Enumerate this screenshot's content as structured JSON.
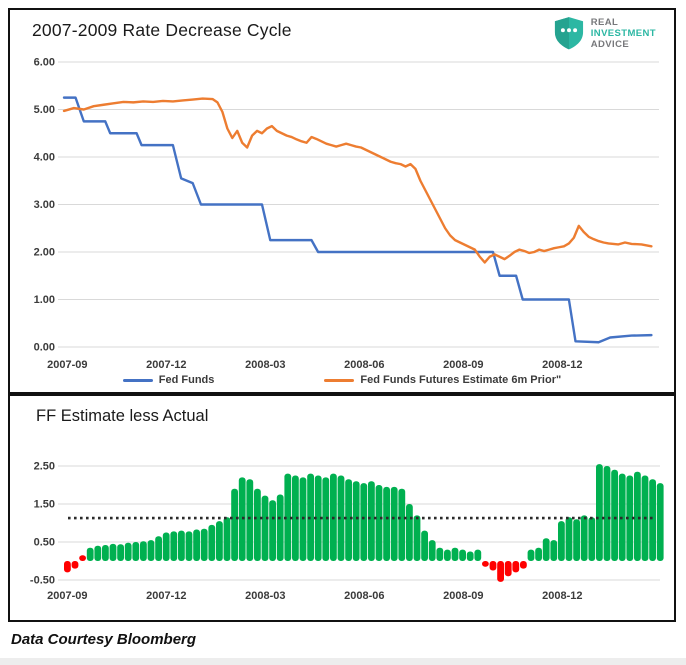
{
  "header": {
    "logo": {
      "line1": "REAL",
      "line2": "INVESTMENT",
      "line3": "ADVICE"
    }
  },
  "footer": {
    "credit": "Data Courtesy Bloomberg"
  },
  "colors": {
    "fed_funds": "#4472C4",
    "futures": "#ED7D31",
    "positive": "#00B050",
    "negative": "#FF0000",
    "gridline": "#D9D9D9",
    "axis_text": "#3B3B3B",
    "dotted_line": "#2B2B2B",
    "logo_teal": "#2CB7A3",
    "logo_teal_dark": "#25A390",
    "logo_gray": "#77787B",
    "border": "#111111"
  },
  "chart_data": [
    {
      "type": "line",
      "title": "2007-2009 Rate Decrease Cycle",
      "xlabel": "",
      "ylabel": "",
      "x_unit": "months since 2007-09",
      "ylim": [
        0,
        6
      ],
      "grid": true,
      "legend_position": "bottom",
      "y_ticks": [
        6,
        5,
        4,
        3,
        2,
        1,
        0
      ],
      "x_ticks": [
        {
          "t": 0.1,
          "label": "2007-09"
        },
        {
          "t": 3.1,
          "label": "2007-12"
        },
        {
          "t": 6.1,
          "label": "2008-03"
        },
        {
          "t": 9.1,
          "label": "2008-06"
        },
        {
          "t": 12.1,
          "label": "2008-09"
        },
        {
          "t": 15.1,
          "label": "2008-12"
        }
      ],
      "legend": [
        {
          "name": "Fed Funds",
          "color_key": "fed_funds"
        },
        {
          "name": "Fed Funds Futures Estimate 6m Prior\"",
          "color_key": "futures"
        }
      ],
      "series": [
        {
          "name": "Fed Funds",
          "color_key": "fed_funds",
          "points": [
            [
              0,
              5.25
            ],
            [
              0.35,
              5.25
            ],
            [
              0.6,
              4.75
            ],
            [
              1.25,
              4.75
            ],
            [
              1.4,
              4.5
            ],
            [
              2.2,
              4.5
            ],
            [
              2.35,
              4.25
            ],
            [
              3.3,
              4.25
            ],
            [
              3.55,
              3.55
            ],
            [
              3.9,
              3.45
            ],
            [
              4.15,
              3.0
            ],
            [
              6.0,
              3.0
            ],
            [
              6.25,
              2.25
            ],
            [
              7.5,
              2.25
            ],
            [
              7.7,
              2.0
            ],
            [
              13.0,
              2.0
            ],
            [
              13.2,
              1.5
            ],
            [
              13.7,
              1.5
            ],
            [
              13.9,
              1.0
            ],
            [
              15.3,
              1.0
            ],
            [
              15.5,
              0.12
            ],
            [
              16.2,
              0.1
            ],
            [
              16.55,
              0.2
            ],
            [
              17.2,
              0.24
            ],
            [
              17.8,
              0.25
            ]
          ]
        },
        {
          "name": "Fed Funds Futures Estimate 6m Prior\"",
          "color_key": "futures",
          "points": [
            [
              0,
              4.97
            ],
            [
              0.3,
              5.03
            ],
            [
              0.6,
              5.0
            ],
            [
              0.9,
              5.07
            ],
            [
              1.2,
              5.1
            ],
            [
              1.5,
              5.13
            ],
            [
              1.8,
              5.16
            ],
            [
              2.1,
              5.15
            ],
            [
              2.4,
              5.17
            ],
            [
              2.7,
              5.16
            ],
            [
              3.0,
              5.18
            ],
            [
              3.3,
              5.17
            ],
            [
              3.6,
              5.19
            ],
            [
              3.9,
              5.21
            ],
            [
              4.2,
              5.23
            ],
            [
              4.5,
              5.22
            ],
            [
              4.65,
              5.15
            ],
            [
              4.8,
              4.95
            ],
            [
              4.95,
              4.6
            ],
            [
              5.1,
              4.4
            ],
            [
              5.25,
              4.55
            ],
            [
              5.4,
              4.3
            ],
            [
              5.55,
              4.2
            ],
            [
              5.7,
              4.45
            ],
            [
              5.85,
              4.55
            ],
            [
              6.0,
              4.5
            ],
            [
              6.15,
              4.6
            ],
            [
              6.3,
              4.65
            ],
            [
              6.45,
              4.55
            ],
            [
              6.6,
              4.5
            ],
            [
              6.75,
              4.45
            ],
            [
              6.9,
              4.42
            ],
            [
              7.05,
              4.37
            ],
            [
              7.2,
              4.33
            ],
            [
              7.35,
              4.3
            ],
            [
              7.5,
              4.42
            ],
            [
              7.65,
              4.38
            ],
            [
              7.8,
              4.33
            ],
            [
              7.95,
              4.28
            ],
            [
              8.1,
              4.25
            ],
            [
              8.25,
              4.22
            ],
            [
              8.4,
              4.25
            ],
            [
              8.55,
              4.28
            ],
            [
              8.7,
              4.25
            ],
            [
              8.85,
              4.22
            ],
            [
              9.0,
              4.2
            ],
            [
              9.15,
              4.15
            ],
            [
              9.3,
              4.1
            ],
            [
              9.45,
              4.05
            ],
            [
              9.6,
              4.0
            ],
            [
              9.75,
              3.95
            ],
            [
              9.9,
              3.9
            ],
            [
              10.05,
              3.87
            ],
            [
              10.2,
              3.85
            ],
            [
              10.35,
              3.8
            ],
            [
              10.5,
              3.85
            ],
            [
              10.65,
              3.75
            ],
            [
              10.8,
              3.5
            ],
            [
              10.95,
              3.3
            ],
            [
              11.1,
              3.1
            ],
            [
              11.25,
              2.9
            ],
            [
              11.4,
              2.7
            ],
            [
              11.55,
              2.5
            ],
            [
              11.7,
              2.35
            ],
            [
              11.85,
              2.25
            ],
            [
              12.0,
              2.2
            ],
            [
              12.15,
              2.15
            ],
            [
              12.3,
              2.1
            ],
            [
              12.45,
              2.05
            ],
            [
              12.6,
              1.9
            ],
            [
              12.75,
              1.78
            ],
            [
              12.9,
              1.9
            ],
            [
              13.05,
              1.95
            ],
            [
              13.2,
              1.9
            ],
            [
              13.35,
              1.85
            ],
            [
              13.5,
              1.92
            ],
            [
              13.65,
              2.0
            ],
            [
              13.8,
              2.05
            ],
            [
              13.95,
              2.02
            ],
            [
              14.1,
              1.98
            ],
            [
              14.25,
              2.0
            ],
            [
              14.4,
              2.05
            ],
            [
              14.55,
              2.02
            ],
            [
              14.7,
              2.05
            ],
            [
              14.85,
              2.08
            ],
            [
              15.0,
              2.1
            ],
            [
              15.15,
              2.12
            ],
            [
              15.3,
              2.18
            ],
            [
              15.45,
              2.3
            ],
            [
              15.6,
              2.55
            ],
            [
              15.75,
              2.42
            ],
            [
              15.9,
              2.32
            ],
            [
              16.05,
              2.27
            ],
            [
              16.2,
              2.23
            ],
            [
              16.35,
              2.2
            ],
            [
              16.5,
              2.18
            ],
            [
              16.65,
              2.17
            ],
            [
              16.8,
              2.16
            ],
            [
              17.0,
              2.2
            ],
            [
              17.2,
              2.17
            ],
            [
              17.5,
              2.16
            ],
            [
              17.8,
              2.12
            ]
          ]
        }
      ]
    },
    {
      "type": "bar",
      "title": "FF Estimate less Actual",
      "xlabel": "",
      "ylabel": "",
      "x_unit": "weeks since 2007-09",
      "ylim": [
        -0.75,
        2.75
      ],
      "grid": true,
      "reference_line": 1.13,
      "y_ticks": [
        2.5,
        1.5,
        0.5,
        -0.5
      ],
      "x_ticks": [
        {
          "t": 0.1,
          "label": "2007-09"
        },
        {
          "t": 3.1,
          "label": "2007-12"
        },
        {
          "t": 6.1,
          "label": "2008-03"
        },
        {
          "t": 9.1,
          "label": "2008-06"
        },
        {
          "t": 12.1,
          "label": "2008-09"
        },
        {
          "t": 15.1,
          "label": "2008-12"
        }
      ],
      "values": [
        -0.3,
        -0.2,
        0.15,
        0.35,
        0.4,
        0.42,
        0.45,
        0.44,
        0.48,
        0.5,
        0.52,
        0.55,
        0.65,
        0.75,
        0.78,
        0.8,
        0.78,
        0.83,
        0.85,
        0.95,
        1.05,
        1.15,
        1.9,
        2.2,
        2.15,
        1.9,
        1.72,
        1.6,
        1.75,
        2.3,
        2.25,
        2.2,
        2.3,
        2.25,
        2.2,
        2.3,
        2.25,
        2.15,
        2.1,
        2.05,
        2.1,
        2.0,
        1.95,
        1.95,
        1.9,
        1.5,
        1.2,
        0.8,
        0.55,
        0.35,
        0.3,
        0.35,
        0.3,
        0.25,
        0.3,
        -0.15,
        -0.25,
        -0.55,
        -0.4,
        -0.3,
        -0.2,
        0.3,
        0.35,
        0.6,
        0.55,
        1.05,
        1.15,
        1.1,
        1.2,
        1.15,
        2.55,
        2.5,
        2.4,
        2.3,
        2.25,
        2.35,
        2.25,
        2.15,
        2.05
      ],
      "red_indices": [
        0,
        1,
        2,
        55,
        56,
        57,
        58,
        59,
        60
      ]
    }
  ]
}
